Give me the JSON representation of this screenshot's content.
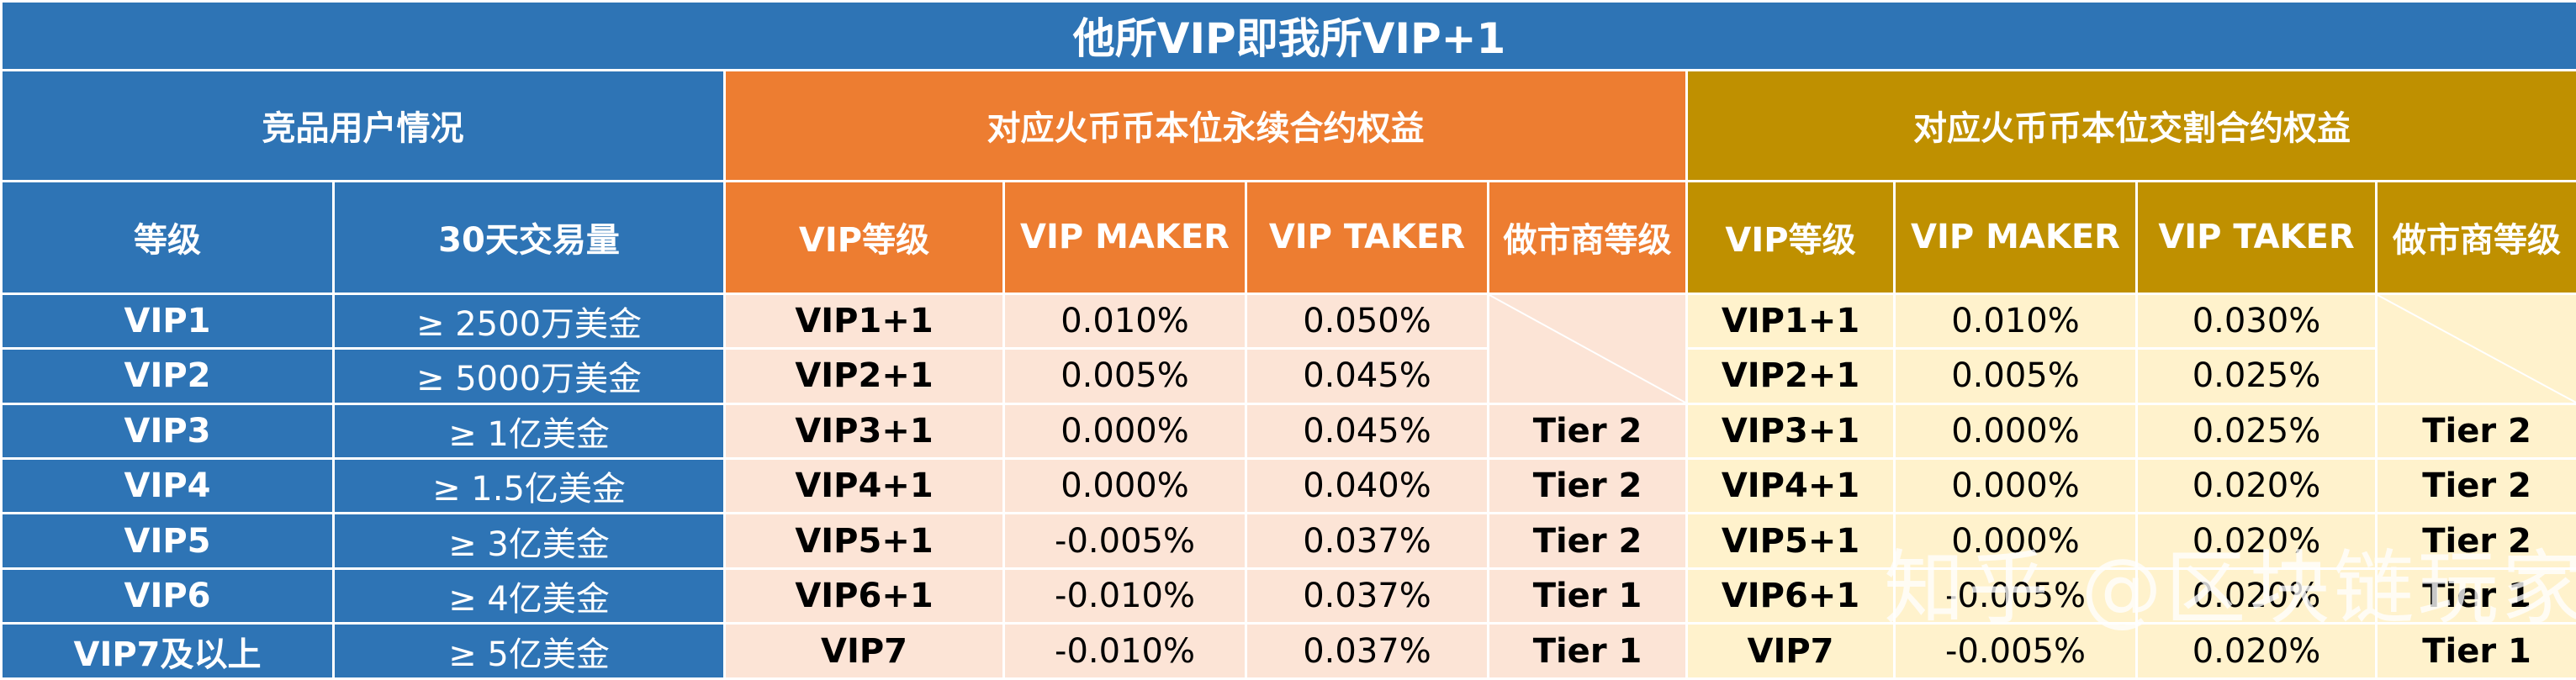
{
  "title": "他所VIP即我所VIP+1",
  "sections": {
    "competitor": "竞品用户情况",
    "perpetual": "对应火币币本位永续合约权益",
    "delivery": "对应火币币本位交割合约权益"
  },
  "columns": {
    "competitor": [
      "等级",
      "30天交易量"
    ],
    "perpetual": [
      "VIP等级",
      "VIP MAKER",
      "VIP TAKER",
      "做市商等级"
    ],
    "delivery": [
      "VIP等级",
      "VIP MAKER",
      "VIP TAKER",
      "做市商等级"
    ]
  },
  "rows": [
    {
      "level": "VIP1",
      "volume": "≥ 2500万美金",
      "perp": {
        "vip": "VIP1+1",
        "maker": "0.010%",
        "taker": "0.050%",
        "tier": ""
      },
      "deliv": {
        "vip": "VIP1+1",
        "maker": "0.010%",
        "taker": "0.030%",
        "tier": ""
      }
    },
    {
      "level": "VIP2",
      "volume": "≥ 5000万美金",
      "perp": {
        "vip": "VIP2+1",
        "maker": "0.005%",
        "taker": "0.045%",
        "tier": ""
      },
      "deliv": {
        "vip": "VIP2+1",
        "maker": "0.005%",
        "taker": "0.025%",
        "tier": ""
      }
    },
    {
      "level": "VIP3",
      "volume": "≥ 1亿美金",
      "perp": {
        "vip": "VIP3+1",
        "maker": "0.000%",
        "taker": "0.045%",
        "tier": "Tier 2"
      },
      "deliv": {
        "vip": "VIP3+1",
        "maker": "0.000%",
        "taker": "0.025%",
        "tier": "Tier 2"
      }
    },
    {
      "level": "VIP4",
      "volume": "≥ 1.5亿美金",
      "perp": {
        "vip": "VIP4+1",
        "maker": "0.000%",
        "taker": "0.040%",
        "tier": "Tier 2"
      },
      "deliv": {
        "vip": "VIP4+1",
        "maker": "0.000%",
        "taker": "0.020%",
        "tier": "Tier 2"
      }
    },
    {
      "level": "VIP5",
      "volume": "≥ 3亿美金",
      "perp": {
        "vip": "VIP5+1",
        "maker": "-0.005%",
        "taker": "0.037%",
        "tier": "Tier 2"
      },
      "deliv": {
        "vip": "VIP5+1",
        "maker": "0.000%",
        "taker": "0.020%",
        "tier": "Tier 2"
      }
    },
    {
      "level": "VIP6",
      "volume": "≥ 4亿美金",
      "perp": {
        "vip": "VIP6+1",
        "maker": "-0.010%",
        "taker": "0.037%",
        "tier": "Tier 1"
      },
      "deliv": {
        "vip": "VIP6+1",
        "maker": "-0.005%",
        "taker": "0.020%",
        "tier": "Tier 1"
      }
    },
    {
      "level": "VIP7及以上",
      "volume": "≥ 5亿美金",
      "perp": {
        "vip": "VIP7",
        "maker": "-0.010%",
        "taker": "0.037%",
        "tier": "Tier 1"
      },
      "deliv": {
        "vip": "VIP7",
        "maker": "-0.005%",
        "taker": "0.020%",
        "tier": "Tier 1"
      }
    }
  ],
  "watermark": "知乎 @区块链玩家",
  "colors": {
    "blue": "#2e74b5",
    "orange": "#ed7d31",
    "gold": "#bf9000",
    "peach": "#fce4d6",
    "cream": "#fff2cc"
  }
}
